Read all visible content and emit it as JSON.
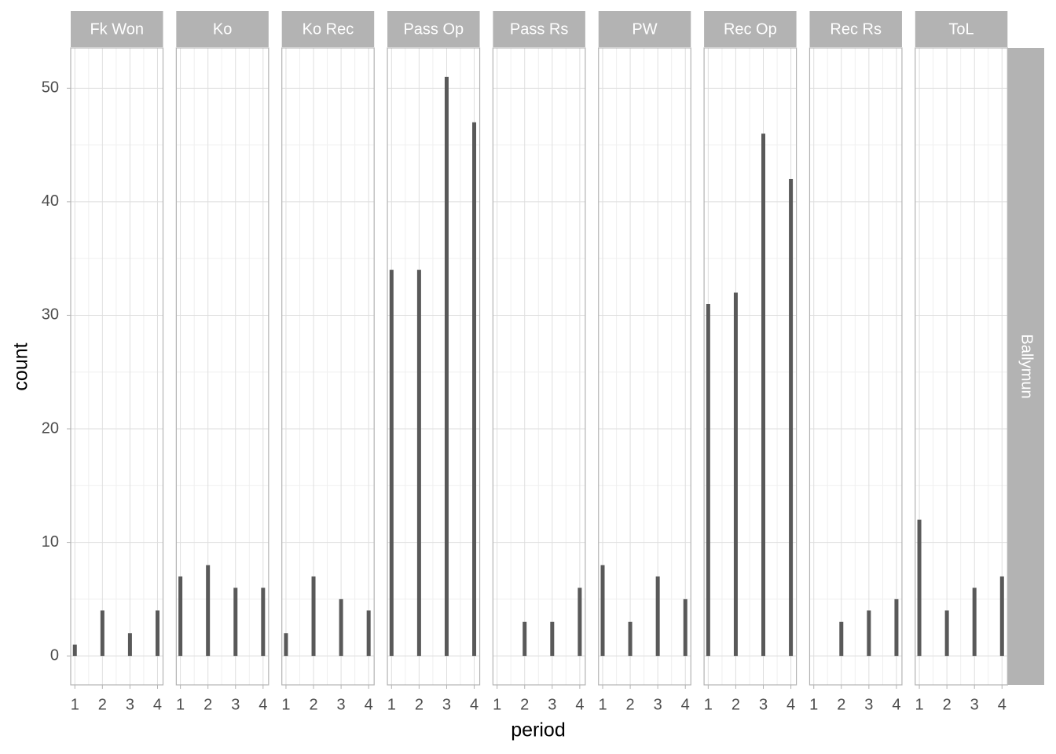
{
  "chart_data": {
    "type": "bar",
    "x_label": "period",
    "y_label": "count",
    "x": [
      1,
      2,
      3,
      4
    ],
    "xlim": [
      0.85,
      4.2
    ],
    "xticks": [
      1,
      2,
      3,
      4
    ],
    "ylim": [
      -2.55,
      53.55
    ],
    "yticks": [
      0,
      10,
      20,
      30,
      40,
      50
    ],
    "grid": true,
    "color": "#595959",
    "row_facet": "Ballymun",
    "facets": [
      {
        "name": "Fk Won",
        "values": [
          1,
          4,
          2,
          4
        ]
      },
      {
        "name": "Ko",
        "values": [
          7,
          8,
          6,
          6
        ]
      },
      {
        "name": "Ko Rec",
        "values": [
          2,
          7,
          5,
          4
        ]
      },
      {
        "name": "Pass Op",
        "values": [
          34,
          34,
          51,
          47
        ]
      },
      {
        "name": "Pass Rs",
        "values": [
          null,
          3,
          3,
          6
        ]
      },
      {
        "name": "PW",
        "values": [
          8,
          3,
          7,
          5
        ]
      },
      {
        "name": "Rec Op",
        "values": [
          31,
          32,
          46,
          42
        ]
      },
      {
        "name": "Rec Rs",
        "values": [
          null,
          3,
          4,
          5
        ]
      },
      {
        "name": "ToL",
        "values": [
          12,
          4,
          6,
          7
        ]
      }
    ]
  }
}
